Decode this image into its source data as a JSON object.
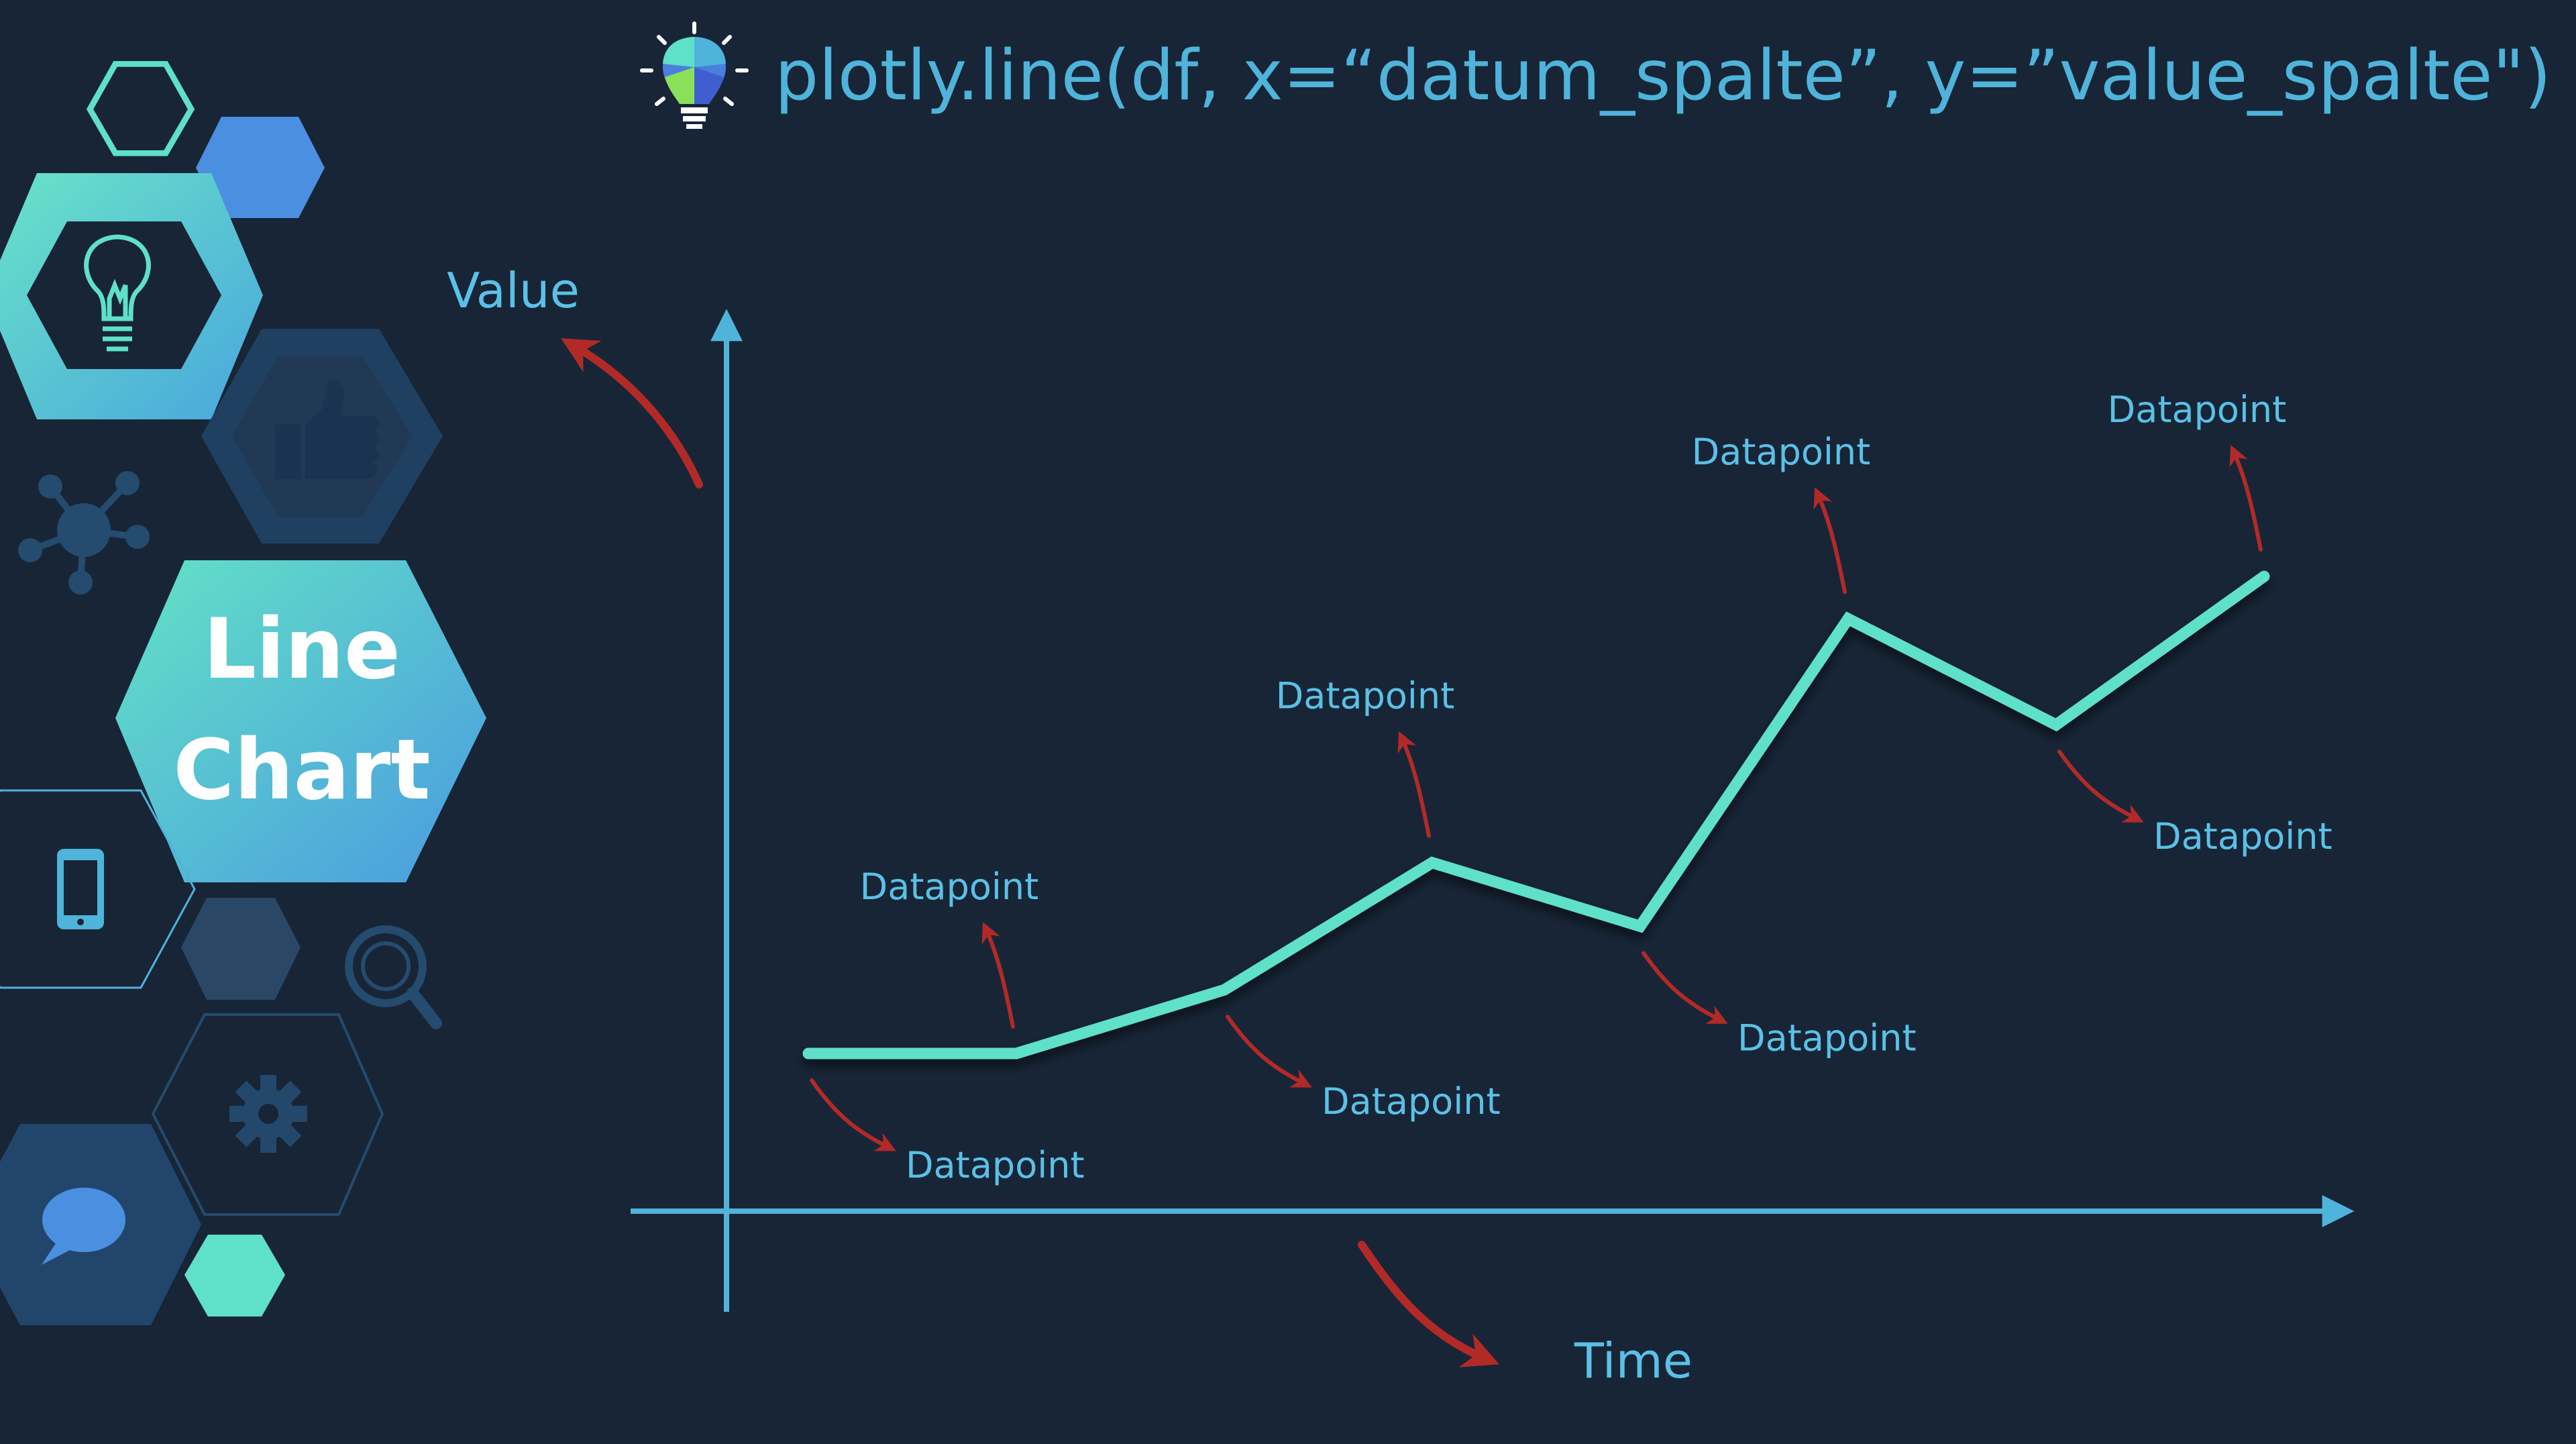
{
  "header": {
    "code": "plotly.line(df, x=“datum_spalte”, y=”value_spalte\")",
    "icon": "lightbulb-icon"
  },
  "badge": {
    "line1": "Line",
    "line2": "Chart"
  },
  "colors": {
    "background": "#172537",
    "line": "#5FE0C9",
    "axis": "#4FB3DA",
    "arrow": "#B22A28",
    "label": "#5BC0E6",
    "badge_start": "#63E2C6",
    "badge_end": "#4A9BE0"
  },
  "chart_data": {
    "type": "line",
    "xlabel": "Time",
    "ylabel": "Value",
    "point_label": "Datapoint",
    "series": [
      {
        "x": [
          1,
          2,
          3,
          4,
          5,
          6,
          7,
          8
        ],
        "y": [
          1.0,
          1.0,
          1.6,
          2.8,
          2.2,
          5.1,
          4.1,
          5.5
        ]
      }
    ]
  },
  "decor_icons": [
    "lightbulb-icon",
    "thumbs-up-icon",
    "network-icon",
    "smartphone-icon",
    "magnifier-icon",
    "gear-icon",
    "chat-bubble-icon"
  ]
}
